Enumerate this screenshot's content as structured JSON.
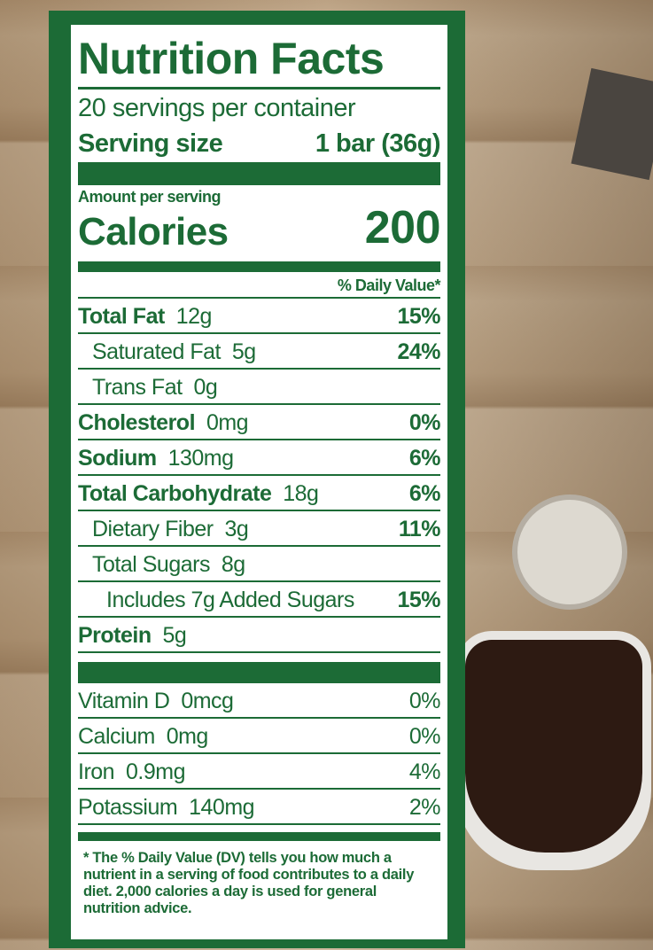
{
  "title": "Nutrition Facts",
  "servings": "20 servings per container",
  "serving_size": {
    "label": "Serving size",
    "value": "1 bar (36g)"
  },
  "amount_per_serving": "Amount per serving",
  "calories": {
    "label": "Calories",
    "value": "200"
  },
  "daily_value_header": "% Daily Value*",
  "nutrients": [
    {
      "name": "Total Fat",
      "amount": "12g",
      "dv": "15%"
    },
    {
      "name": "Saturated Fat",
      "amount": "5g",
      "dv": "24%"
    },
    {
      "name": "Trans Fat",
      "amount": "0g"
    },
    {
      "name": "Cholesterol",
      "amount": "0mg",
      "dv": "0%"
    },
    {
      "name": "Sodium",
      "amount": "130mg",
      "dv": "6%"
    },
    {
      "name": "Total Carbohydrate",
      "amount": "18g",
      "dv": "6%"
    },
    {
      "name": "Dietary Fiber",
      "amount": "3g",
      "dv": "11%"
    },
    {
      "name": "Total Sugars",
      "amount": "8g"
    },
    {
      "name": "Includes 7g Added Sugars",
      "dv": "15%"
    },
    {
      "name": "Protein",
      "amount": "5g"
    }
  ],
  "vitamins": [
    {
      "name": "Vitamin D",
      "amount": "0mcg",
      "dv": "0%"
    },
    {
      "name": "Calcium",
      "amount": "0mg",
      "dv": "0%"
    },
    {
      "name": "Iron",
      "amount": "0.9mg",
      "dv": "4%"
    },
    {
      "name": "Potassium",
      "amount": "140mg",
      "dv": "2%"
    }
  ],
  "footnote": "* The % Daily Value (DV) tells you how much a nutrient in a serving of food contributes to a daily diet. 2,000 calories a day is used for general nutrition advice."
}
